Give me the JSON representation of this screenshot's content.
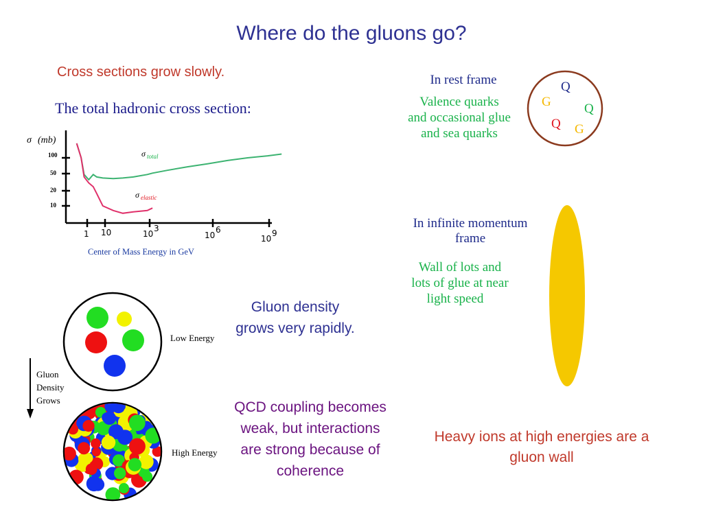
{
  "slide": {
    "title": "Where do the gluons go?",
    "cross_note": "Cross sections grow slowly.",
    "gluon_density_note": "Gluon density grows very rapidly.",
    "qcd_note": "QCD coupling becomes weak, but interactions are strong because of coherence",
    "heavy_ions_note": "Heavy ions at high energies are a gluon wall"
  },
  "chart": {
    "title": "The total hadronic cross section:",
    "ylabel_symbol": "σ",
    "ylabel_unit": "(mb)",
    "xlabel": "Center of Mass Energy in GeV",
    "ytick_labels": [
      "100",
      "50",
      "20",
      "10"
    ],
    "xtick_labels": [
      "1",
      "10",
      "10",
      "10",
      "10"
    ],
    "xtick_exponents": [
      "3",
      "6",
      "9"
    ],
    "series_total_symbol": "σ",
    "series_total_sub": "total",
    "series_elastic_symbol": "σ",
    "series_elastic_sub": "elastic",
    "colors": {
      "total": "#3cb371",
      "elastic": "#e0306a",
      "axis": "#000000"
    }
  },
  "chart_data": {
    "type": "line",
    "xscale": "log",
    "yscale": "log",
    "xlabel": "Center of Mass Energy in GeV",
    "ylabel": "σ (mb)",
    "title": "The total hadronic cross section:",
    "series": [
      {
        "name": "σtotal",
        "x": [
          0.3,
          0.5,
          0.7,
          1.2,
          2,
          3,
          6,
          20,
          60,
          200,
          1000,
          1800,
          10000,
          100000,
          1000000,
          10000000,
          100000000,
          1000000000,
          5000000000
        ],
        "y": [
          200,
          100,
          45,
          35,
          45,
          40,
          38,
          37,
          38,
          40,
          45,
          48,
          55,
          65,
          75,
          88,
          100,
          110,
          120
        ]
      },
      {
        "name": "σelastic",
        "x": [
          0.3,
          0.5,
          0.7,
          1.2,
          2,
          3,
          6,
          20,
          60,
          200,
          1000,
          1800
        ],
        "y": [
          200,
          100,
          40,
          30,
          25,
          18,
          10,
          8,
          7,
          7.5,
          8,
          9
        ]
      }
    ]
  },
  "rest_frame": {
    "heading": "In rest frame",
    "lines": [
      "Valence quarks",
      "and occasional glue",
      "and sea quarks"
    ],
    "quarks": [
      {
        "letter": "Q",
        "color": "#1e2a8a"
      },
      {
        "letter": "G",
        "color": "#f5b800"
      },
      {
        "letter": "Q",
        "color": "#19b24a"
      },
      {
        "letter": "Q",
        "color": "#e0141e"
      },
      {
        "letter": "G",
        "color": "#f5b800"
      }
    ]
  },
  "infinite_frame": {
    "heading_lines": [
      "In infinite momentum",
      "frame"
    ],
    "lines": [
      "Wall of lots and",
      "lots of glue at near",
      "light speed"
    ],
    "wall_color": "#f5c800"
  },
  "density": {
    "low_label": "Low Energy",
    "high_label": "High Energy",
    "arrow_lines": [
      "Gluon",
      "Density",
      "Grows"
    ]
  }
}
